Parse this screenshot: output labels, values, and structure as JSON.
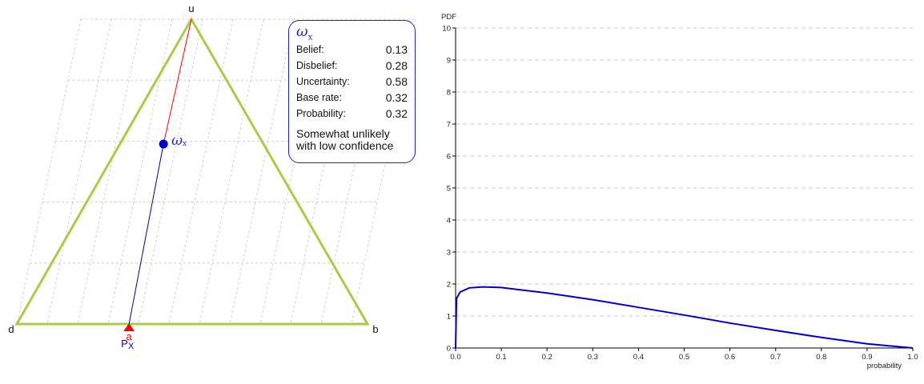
{
  "triangle": {
    "vertex_labels": {
      "uncertainty": "u",
      "disbelief": "d",
      "belief": "b"
    },
    "opinion_label": "ω",
    "opinion_subscript": "x",
    "base_rate_marker_label": "a",
    "projected_probability_label": "P",
    "projected_probability_subscript": "X",
    "colors": {
      "triangle": "#aacc44",
      "to_apex": "#ff0000",
      "to_base": "#000099",
      "opinion_point": "#0000dd",
      "base_rate_marker": "#ff0000"
    }
  },
  "opinion": {
    "title": "ω",
    "title_subscript": "x",
    "rows": [
      {
        "label": "Belief:",
        "value": "0.13"
      },
      {
        "label": "Disbelief:",
        "value": "0.28"
      },
      {
        "label": "Uncertainty:",
        "value": "0.58"
      },
      {
        "label": "Base rate:",
        "value": "0.32"
      },
      {
        "label": "Probability:",
        "value": "0.32"
      }
    ],
    "verdict_line1": "Somewhat unlikely",
    "verdict_line2": "with low confidence",
    "belief": 0.13,
    "disbelief": 0.28,
    "uncertainty": 0.58,
    "base_rate": 0.32
  },
  "chart_data": {
    "type": "line",
    "title": "",
    "xlabel": "probability",
    "ylabel": "PDF",
    "xlim": [
      0,
      1
    ],
    "ylim": [
      0,
      10
    ],
    "xticks": [
      "0.0",
      "0.1",
      "0.2",
      "0.3",
      "0.4",
      "0.5",
      "0.6",
      "0.7",
      "0.8",
      "0.9",
      "1.0"
    ],
    "yticks": [
      "0",
      "1",
      "2",
      "3",
      "4",
      "5",
      "6",
      "7",
      "8",
      "9",
      "10"
    ],
    "grid": "horizontal dashed",
    "line_color": "#0000cc",
    "series": [
      {
        "x": [
          0.0,
          0.002,
          0.01,
          0.03,
          0.06,
          0.1,
          0.2,
          0.3,
          0.4,
          0.5,
          0.6,
          0.7,
          0.8,
          0.9,
          1.0
        ],
        "y": [
          0.0,
          1.55,
          1.75,
          1.88,
          1.91,
          1.89,
          1.72,
          1.51,
          1.27,
          1.03,
          0.78,
          0.55,
          0.33,
          0.13,
          0.0
        ]
      }
    ]
  }
}
